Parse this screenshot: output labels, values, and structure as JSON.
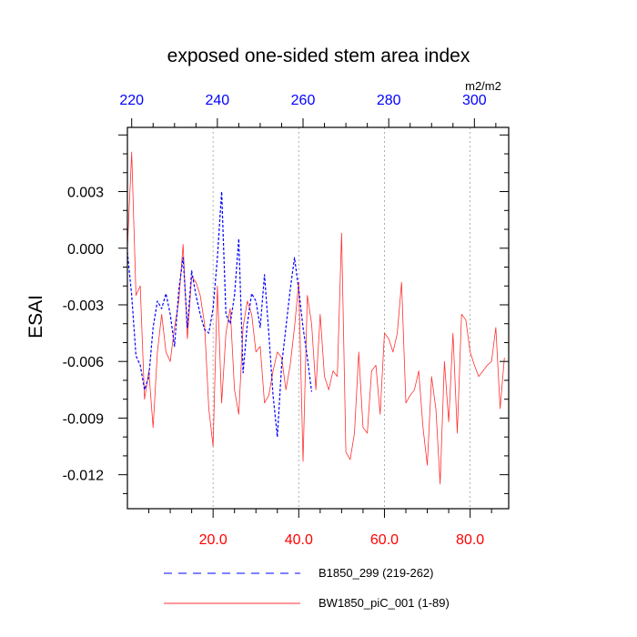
{
  "chart_data": {
    "type": "line",
    "title": "exposed one-sided stem area index",
    "ylabel": "ESAI",
    "units_label": "m2/m2",
    "xlim": [
      0,
      89
    ],
    "ylim": [
      -0.0138,
      0.0064
    ],
    "bottom_axis": {
      "ticks": [
        20,
        40,
        60,
        80
      ],
      "labels": [
        "20.0",
        "40.0",
        "60.0",
        "80.0"
      ],
      "color": "#ff0000"
    },
    "top_axis": {
      "ticks": [
        220,
        240,
        260,
        280,
        300
      ],
      "labels": [
        "220",
        "240",
        "260",
        "280",
        "300"
      ],
      "color": "#0000ff",
      "offset": 219
    },
    "y_ticks": [
      0.003,
      0.0,
      -0.003,
      -0.006,
      -0.009,
      -0.012
    ],
    "y_tick_labels": [
      "0.003",
      "0.000",
      "-0.003",
      "-0.006",
      "-0.009",
      "-0.012"
    ],
    "grid": "vertical dotted at major x ticks",
    "series": [
      {
        "name": "B1850_299 (219-262)",
        "color": "#0000ff",
        "style": "dashed",
        "x": [
          0,
          1,
          2,
          3,
          4,
          5,
          6,
          7,
          8,
          9,
          10,
          11,
          12,
          13,
          14,
          15,
          16,
          17,
          18,
          19,
          20,
          21,
          22,
          23,
          24,
          25,
          26,
          27,
          28,
          29,
          30,
          31,
          32,
          33,
          34,
          35,
          36,
          37,
          38,
          39,
          40,
          41,
          42,
          43
        ],
        "values": [
          -0.0002,
          -0.0025,
          -0.0057,
          -0.0062,
          -0.0075,
          -0.0068,
          -0.0042,
          -0.0028,
          -0.0032,
          -0.0024,
          -0.0035,
          -0.0052,
          -0.0022,
          -0.0005,
          -0.0042,
          -0.0012,
          -0.0025,
          -0.0035,
          -0.0043,
          -0.0045,
          -0.0032,
          -0.0005,
          0.003,
          -0.0035,
          -0.004,
          -0.0025,
          0.0005,
          -0.0066,
          -0.004,
          -0.0024,
          -0.0028,
          -0.0042,
          -0.0014,
          -0.0045,
          -0.0078,
          -0.01,
          -0.0062,
          -0.0042,
          -0.0022,
          -0.0005,
          -0.0022,
          -0.0042,
          -0.0058,
          -0.0076
        ]
      },
      {
        "name": "BW1850_piC_001 (1-89)",
        "color": "#ff3030",
        "style": "solid",
        "x": [
          0,
          1,
          2,
          3,
          4,
          5,
          6,
          7,
          8,
          9,
          10,
          11,
          12,
          13,
          14,
          15,
          16,
          17,
          18,
          19,
          20,
          21,
          22,
          23,
          24,
          25,
          26,
          27,
          28,
          29,
          30,
          31,
          32,
          33,
          34,
          35,
          36,
          37,
          38,
          39,
          40,
          41,
          42,
          43,
          44,
          45,
          46,
          47,
          48,
          49,
          50,
          51,
          52,
          53,
          54,
          55,
          56,
          57,
          58,
          59,
          60,
          61,
          62,
          63,
          64,
          65,
          66,
          67,
          68,
          69,
          70,
          71,
          72,
          73,
          74,
          75,
          76,
          77,
          78,
          79,
          80,
          81,
          82,
          83,
          84,
          85,
          86,
          87,
          88
        ],
        "values": [
          0.0,
          0.0051,
          -0.0025,
          -0.002,
          -0.008,
          -0.0065,
          -0.0095,
          -0.0055,
          -0.0035,
          -0.0055,
          -0.006,
          -0.0042,
          -0.0028,
          0.0002,
          -0.0048,
          -0.0015,
          -0.0018,
          -0.0025,
          -0.004,
          -0.0085,
          -0.0105,
          -0.002,
          -0.0082,
          -0.0045,
          -0.0032,
          -0.0075,
          -0.0088,
          -0.0042,
          -0.0028,
          -0.0035,
          -0.0055,
          -0.0052,
          -0.0082,
          -0.0078,
          -0.0065,
          -0.0055,
          -0.0058,
          -0.0075,
          -0.0062,
          -0.0042,
          -0.0018,
          -0.0113,
          -0.0025,
          -0.004,
          -0.0075,
          -0.0035,
          -0.0068,
          -0.0075,
          -0.0065,
          -0.0068,
          0.0008,
          -0.0108,
          -0.0112,
          -0.0098,
          -0.0055,
          -0.0095,
          -0.0098,
          -0.0065,
          -0.0062,
          -0.0088,
          -0.0045,
          -0.0048,
          -0.0055,
          -0.0045,
          -0.0018,
          -0.0082,
          -0.0078,
          -0.0075,
          -0.0065,
          -0.0095,
          -0.0115,
          -0.0068,
          -0.0085,
          -0.0125,
          -0.006,
          -0.0092,
          -0.0045,
          -0.0098,
          -0.0035,
          -0.0038,
          -0.0055,
          -0.0062,
          -0.0068,
          -0.0065,
          -0.0062,
          -0.006,
          -0.0042,
          -0.0085,
          -0.0058
        ]
      }
    ]
  }
}
